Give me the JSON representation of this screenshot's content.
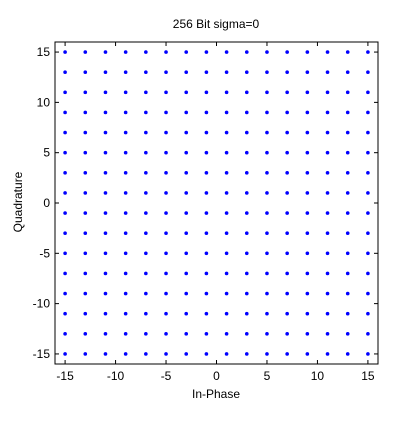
{
  "chart_data": {
    "type": "scatter",
    "title": "256 Bit sigma=0",
    "xlabel": "In-Phase",
    "ylabel": "Quadrature",
    "xlim": [
      -16,
      16
    ],
    "ylim": [
      -16,
      16
    ],
    "x_ticks": [
      -15,
      -10,
      -5,
      0,
      5,
      10,
      15
    ],
    "y_ticks": [
      -15,
      -10,
      -5,
      0,
      5,
      10,
      15
    ],
    "grid": false,
    "constellation_levels": [
      -15,
      -13,
      -11,
      -9,
      -7,
      -5,
      -3,
      -1,
      1,
      3,
      5,
      7,
      9,
      11,
      13,
      15
    ],
    "series": [
      {
        "marker_color": "#0000ff",
        "marker": "dot"
      }
    ]
  }
}
